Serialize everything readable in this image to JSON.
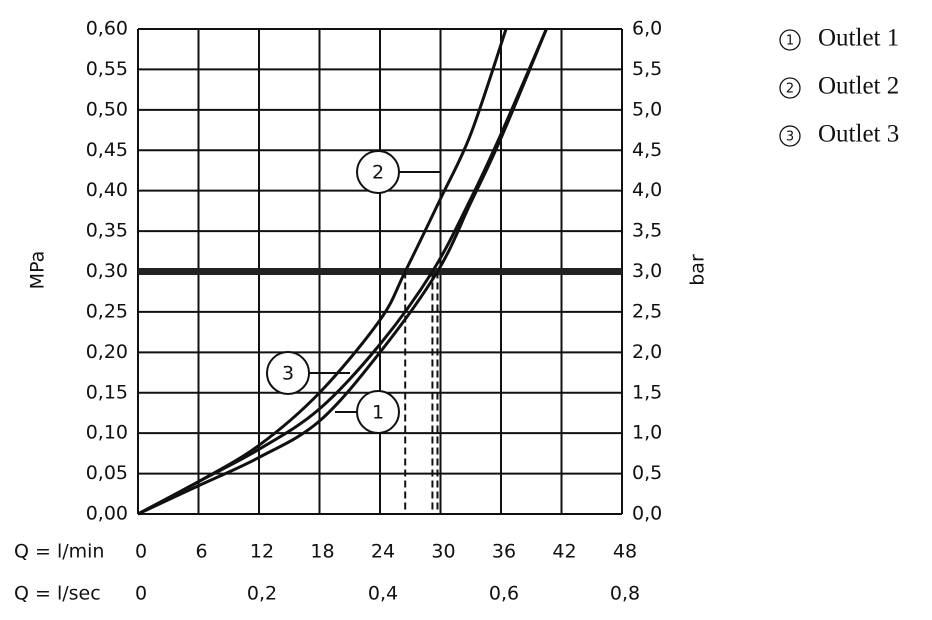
{
  "chart_data": {
    "type": "line",
    "y_label": "MPa",
    "y2_label": "bar",
    "x_label": "Q = l/min",
    "x2_label": "Q = l/sec",
    "xlim": [
      0,
      48
    ],
    "xticks": [
      0,
      6,
      12,
      18,
      24,
      30,
      36,
      42,
      48
    ],
    "x2lim": [
      0,
      0.8
    ],
    "x2ticks": [
      0,
      {
        "value": 0.2,
        "label": "0,2"
      },
      {
        "value": 0.4,
        "label": "0,4"
      },
      {
        "value": 0.6,
        "label": "0,6"
      },
      {
        "value": 0.8,
        "label": "0,8"
      }
    ],
    "ylim": [
      0,
      0.6
    ],
    "yticks": [
      {
        "value": 0,
        "label": "0,00"
      },
      {
        "value": 0.05,
        "label": "0,05"
      },
      {
        "value": 0.1,
        "label": "0,10"
      },
      {
        "value": 0.15,
        "label": "0,15"
      },
      {
        "value": 0.2,
        "label": "0,20"
      },
      {
        "value": 0.25,
        "label": "0,25"
      },
      {
        "value": 0.3,
        "label": "0,30"
      },
      {
        "value": 0.35,
        "label": "0,35"
      },
      {
        "value": 0.4,
        "label": "0,40"
      },
      {
        "value": 0.45,
        "label": "0,45"
      },
      {
        "value": 0.5,
        "label": "0,50"
      },
      {
        "value": 0.55,
        "label": "0,55"
      },
      {
        "value": 0.6,
        "label": "0,60"
      }
    ],
    "y2lim": [
      0,
      6
    ],
    "y2ticks": [
      {
        "value": 0,
        "label": "0,0"
      },
      {
        "value": 0.5,
        "label": "0,5"
      },
      {
        "value": 1,
        "label": "1,0"
      },
      {
        "value": 1.5,
        "label": "1,5"
      },
      {
        "value": 2,
        "label": "2,0"
      },
      {
        "value": 2.5,
        "label": "2,5"
      },
      {
        "value": 3,
        "label": "3,0"
      },
      {
        "value": 3.5,
        "label": "3,5"
      },
      {
        "value": 4,
        "label": "4,0"
      },
      {
        "value": 4.5,
        "label": "4,5"
      },
      {
        "value": 5,
        "label": "5,0"
      },
      {
        "value": 5.5,
        "label": "5,5"
      },
      {
        "value": 6,
        "label": "6,0"
      }
    ],
    "grid": true,
    "threshold": 0.3,
    "color": "#111111",
    "series": [
      {
        "name": "Outlet 1",
        "label": "1",
        "x": [
          0,
          6,
          12,
          18,
          24,
          29.7,
          33,
          36,
          40.5
        ],
        "values": [
          0,
          0.035,
          0.07,
          0.115,
          0.2,
          0.3,
          0.385,
          0.465,
          0.6
        ]
      },
      {
        "name": "Outlet 2",
        "label": "2",
        "x": [
          0,
          6,
          12,
          18,
          24,
          26.5,
          30,
          33,
          36.5
        ],
        "values": [
          0,
          0.04,
          0.085,
          0.15,
          0.24,
          0.3,
          0.39,
          0.47,
          0.6
        ]
      },
      {
        "name": "Outlet 3",
        "label": "3",
        "x": [
          0,
          6,
          12,
          18,
          24,
          29.2,
          33,
          36,
          40.5
        ],
        "values": [
          0,
          0.04,
          0.08,
          0.13,
          0.21,
          0.3,
          0.39,
          0.47,
          0.6
        ]
      }
    ]
  }
}
